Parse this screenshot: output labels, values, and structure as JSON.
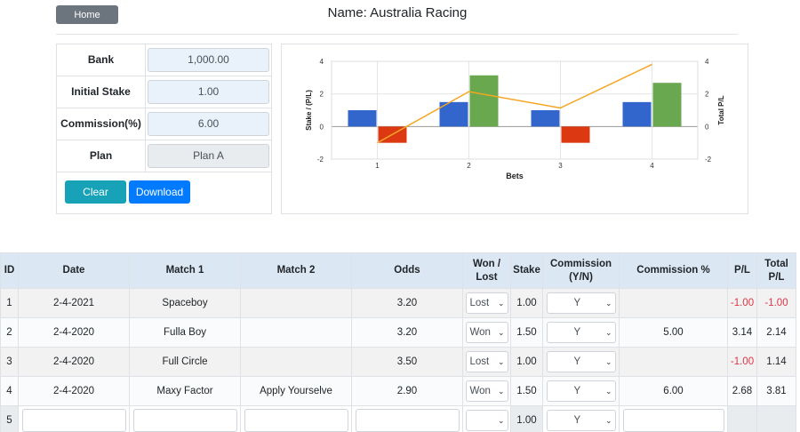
{
  "header": {
    "home_label": "Home",
    "title": "Name: Australia Racing"
  },
  "settings": {
    "bank_label": "Bank",
    "bank_value": "1,000.00",
    "stake_label": "Initial Stake",
    "stake_value": "1.00",
    "commission_label": "Commission(%)",
    "commission_value": "6.00",
    "plan_label": "Plan",
    "plan_value": "Plan A",
    "clear_label": "Clear",
    "download_label": "Download"
  },
  "chart_data": {
    "type": "bar",
    "categories": [
      "1",
      "2",
      "3",
      "4"
    ],
    "xlabel": "Bets",
    "ylabel": "Stake / (P/L)",
    "y2label": "Total P/L",
    "ylim": [
      -2,
      4
    ],
    "y2lim": [
      -2,
      4
    ],
    "yticks": [
      "4",
      "2",
      "0",
      "-2"
    ],
    "grid": true,
    "series": [
      {
        "type": "bar",
        "color": "#3366cc",
        "values": [
          1.0,
          1.5,
          1.0,
          1.5
        ]
      },
      {
        "type": "bar",
        "color_positive": "#6aa84f",
        "color_negative": "#dc3912",
        "values": [
          -1.0,
          3.14,
          -1.0,
          2.68
        ]
      },
      {
        "type": "line",
        "axis": "right",
        "color": "#f5a623",
        "values": [
          -1.0,
          2.14,
          1.14,
          3.81
        ]
      }
    ]
  },
  "table": {
    "headers": [
      "ID",
      "Date",
      "Match 1",
      "Match 2",
      "Odds",
      "Won / Lost",
      "Stake",
      "Commission (Y/N)",
      "Commission %",
      "P/L",
      "Total P/L"
    ],
    "rows": [
      {
        "id": "1",
        "date": "2-4-2021",
        "match1": "Spaceboy",
        "match2": "",
        "odds": "3.20",
        "won_lost": "Lost",
        "stake": "1.00",
        "commission": "Y",
        "commission_pct": "",
        "pl": "-1.00",
        "total_pl": "-1.00"
      },
      {
        "id": "2",
        "date": "2-4-2020",
        "match1": "Fulla Boy",
        "match2": "",
        "odds": "3.20",
        "won_lost": "Won",
        "stake": "1.50",
        "commission": "Y",
        "commission_pct": "5.00",
        "pl": "3.14",
        "total_pl": "2.14"
      },
      {
        "id": "3",
        "date": "2-4-2020",
        "match1": "Full Circle",
        "match2": "",
        "odds": "3.50",
        "won_lost": "Lost",
        "stake": "1.00",
        "commission": "Y",
        "commission_pct": "",
        "pl": "-1.00",
        "total_pl": "1.14"
      },
      {
        "id": "4",
        "date": "2-4-2020",
        "match1": "Maxy Factor",
        "match2": "Apply Yourselve",
        "odds": "2.90",
        "won_lost": "Won",
        "stake": "1.50",
        "commission": "Y",
        "commission_pct": "6.00",
        "pl": "2.68",
        "total_pl": "3.81"
      }
    ],
    "new_row": {
      "id": "5",
      "stake": "1.00",
      "commission": "Y"
    }
  }
}
